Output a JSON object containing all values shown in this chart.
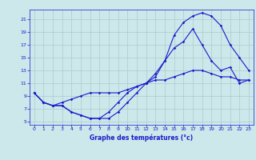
{
  "title": "Graphe des températures (°c)",
  "bg_color": "#cce8ea",
  "grid_color": "#aacccc",
  "line_color": "#1a1acc",
  "xlim": [
    -0.5,
    23.5
  ],
  "ylim": [
    4.5,
    22.5
  ],
  "xticks": [
    0,
    1,
    2,
    3,
    4,
    5,
    6,
    7,
    8,
    9,
    10,
    11,
    12,
    13,
    14,
    15,
    16,
    17,
    18,
    19,
    20,
    21,
    22,
    23
  ],
  "yticks": [
    5,
    7,
    9,
    11,
    13,
    15,
    17,
    19,
    21
  ],
  "line1_x": [
    0,
    1,
    2,
    3,
    4,
    5,
    6,
    7,
    8,
    9,
    10,
    11,
    12,
    13,
    14,
    15,
    16,
    17,
    18,
    19,
    20,
    21,
    22,
    23
  ],
  "line1_y": [
    9.5,
    8.0,
    7.5,
    7.5,
    6.5,
    6.0,
    5.5,
    5.5,
    5.5,
    6.5,
    8.0,
    9.5,
    11.0,
    12.0,
    14.5,
    18.5,
    20.5,
    21.5,
    22.0,
    21.5,
    20.0,
    17.0,
    15.0,
    13.0
  ],
  "line2_x": [
    0,
    1,
    2,
    3,
    4,
    5,
    6,
    7,
    8,
    9,
    10,
    11,
    12,
    13,
    14,
    15,
    16,
    17,
    18,
    19,
    20,
    21,
    22,
    23
  ],
  "line2_y": [
    9.5,
    8.0,
    7.5,
    7.5,
    6.5,
    6.0,
    5.5,
    5.5,
    6.5,
    8.0,
    9.5,
    10.5,
    11.0,
    12.5,
    14.5,
    16.5,
    17.5,
    19.5,
    17.0,
    14.5,
    13.0,
    13.5,
    11.0,
    11.5
  ],
  "line3_x": [
    0,
    1,
    2,
    3,
    4,
    5,
    6,
    7,
    8,
    9,
    10,
    11,
    12,
    13,
    14,
    15,
    16,
    17,
    18,
    19,
    20,
    21,
    22,
    23
  ],
  "line3_y": [
    9.5,
    8.0,
    7.5,
    8.0,
    8.5,
    9.0,
    9.5,
    9.5,
    9.5,
    9.5,
    10.0,
    10.5,
    11.0,
    11.5,
    11.5,
    12.0,
    12.5,
    13.0,
    13.0,
    12.5,
    12.0,
    12.0,
    11.5,
    11.5
  ]
}
